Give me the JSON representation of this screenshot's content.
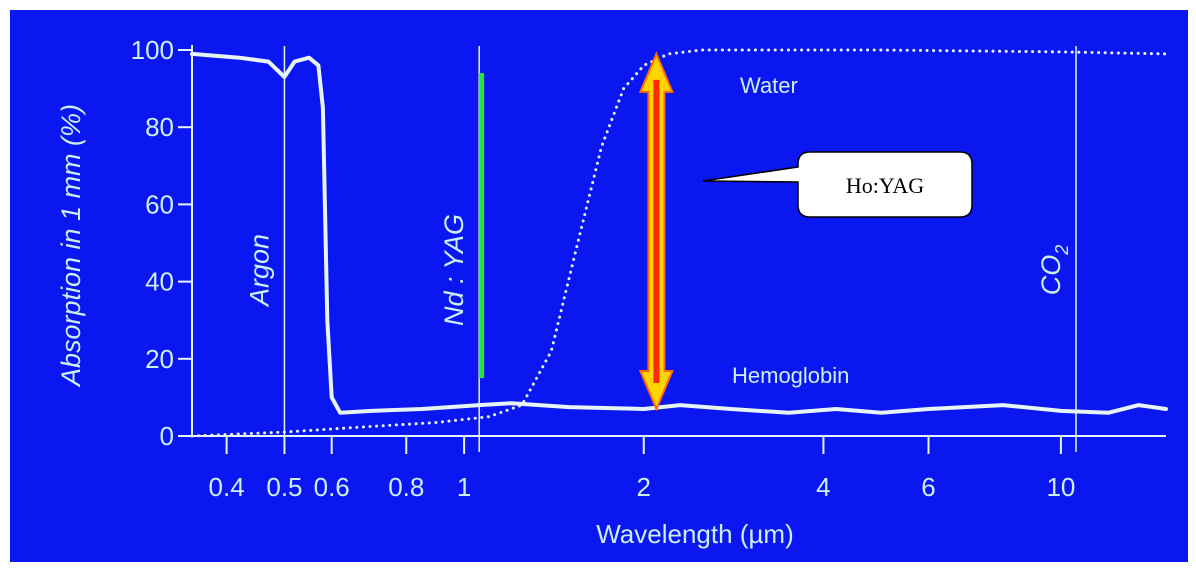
{
  "colors": {
    "background": "#0a17f0",
    "curve": "#e6f4f6",
    "text": "#cdeef2",
    "nd_yag_bar": "#22e63a",
    "arrow_fill": "#ffd400",
    "arrow_core": "#ff2a00",
    "callout_fill": "#ffffff"
  },
  "chart_data": {
    "type": "line",
    "title": "",
    "xlabel": "Wavelength (µm)",
    "ylabel": "Absorption in 1 mm (%)",
    "x_scale": "log",
    "xlim": [
      0.35,
      15
    ],
    "ylim": [
      0,
      100
    ],
    "x_ticks": [
      {
        "value": 0.4,
        "label": "0.4"
      },
      {
        "value": 0.5,
        "label": "0.5"
      },
      {
        "value": 0.6,
        "label": "0.6"
      },
      {
        "value": 0.8,
        "label": "0.8"
      },
      {
        "value": 1,
        "label": "1"
      },
      {
        "value": 2,
        "label": "2"
      },
      {
        "value": 4,
        "label": "4"
      },
      {
        "value": 6,
        "label": "6"
      },
      {
        "value": 10,
        "label": "10"
      }
    ],
    "y_ticks": [
      {
        "value": 0,
        "label": "0"
      },
      {
        "value": 20,
        "label": "20"
      },
      {
        "value": 40,
        "label": "40"
      },
      {
        "value": 60,
        "label": "60"
      },
      {
        "value": 80,
        "label": "80"
      },
      {
        "value": 100,
        "label": "100"
      }
    ],
    "series": [
      {
        "name": "Hemoglobin",
        "style": "solid",
        "x": [
          0.35,
          0.42,
          0.47,
          0.5,
          0.52,
          0.55,
          0.57,
          0.58,
          0.59,
          0.6,
          0.62,
          0.7,
          0.85,
          1.06,
          1.2,
          1.5,
          2.0,
          2.3,
          2.8,
          3.5,
          4.2,
          5.0,
          6.0,
          8.0,
          10.0,
          12.0,
          13.5,
          15.0
        ],
        "y": [
          99,
          98,
          97,
          93,
          97,
          98,
          96,
          85,
          30,
          10,
          6,
          6.5,
          7,
          8,
          8.5,
          7.5,
          7,
          8,
          7,
          6,
          7,
          6,
          7,
          8,
          6.5,
          6,
          8,
          7
        ]
      },
      {
        "name": "Water",
        "style": "dotted",
        "x": [
          0.35,
          0.5,
          0.7,
          0.9,
          1.1,
          1.25,
          1.4,
          1.55,
          1.7,
          1.85,
          2.0,
          2.2,
          2.5,
          3.0,
          5.0,
          10.0,
          15.0
        ],
        "y": [
          0,
          1,
          2.5,
          3.5,
          5,
          8,
          22,
          50,
          75,
          90,
          96,
          99,
          100,
          100,
          100,
          99.5,
          99
        ]
      }
    ],
    "laser_lines": [
      {
        "label": "Argon",
        "x": 0.5
      },
      {
        "label": "Nd : YAG",
        "x": 1.06
      },
      {
        "label": "CO",
        "label_sub": "2",
        "x": 10.6
      }
    ],
    "annotations": {
      "water_label": "Water",
      "hemoglobin_label": "Hemoglobin",
      "nd_yag_bar": {
        "x": 1.07,
        "y_from": 15,
        "y_to": 94
      },
      "ho_yag_arrow": {
        "x": 2.1,
        "y_from": 7,
        "y_to": 99
      },
      "ho_yag_callout": "Ho:YAG"
    }
  }
}
